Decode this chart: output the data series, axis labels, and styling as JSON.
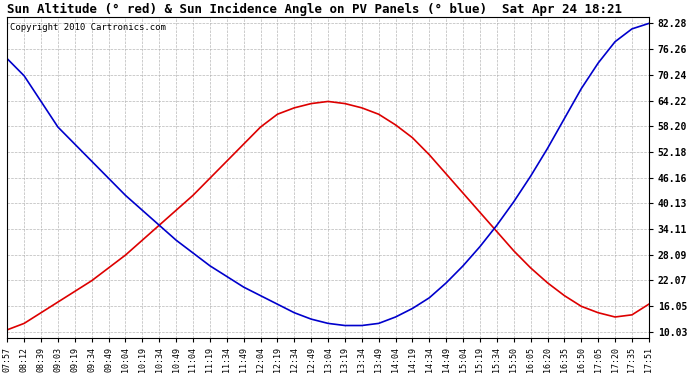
{
  "title": "Sun Altitude (° red) & Sun Incidence Angle on PV Panels (° blue)  Sat Apr 24 18:21",
  "copyright": "Copyright 2010 Cartronics.com",
  "yticks": [
    10.03,
    16.05,
    22.07,
    28.09,
    34.11,
    40.13,
    46.16,
    52.18,
    58.2,
    64.22,
    70.24,
    76.26,
    82.28
  ],
  "ymin": 10.03,
  "ymax": 82.28,
  "background_color": "#ffffff",
  "grid_color": "#b0b0b0",
  "red_color": "#dd0000",
  "blue_color": "#0000cc",
  "xtick_labels": [
    "07:57",
    "08:12",
    "08:39",
    "09:03",
    "09:19",
    "09:34",
    "09:49",
    "10:04",
    "10:19",
    "10:34",
    "10:49",
    "11:04",
    "11:19",
    "11:34",
    "11:49",
    "12:04",
    "12:19",
    "12:34",
    "12:49",
    "13:04",
    "13:19",
    "13:34",
    "13:49",
    "14:04",
    "14:19",
    "14:34",
    "14:49",
    "15:04",
    "15:19",
    "15:34",
    "15:50",
    "16:05",
    "16:20",
    "16:35",
    "16:50",
    "17:05",
    "17:20",
    "17:35",
    "17:51"
  ],
  "red_data": [
    10.5,
    12.0,
    14.5,
    17.0,
    19.5,
    22.0,
    25.0,
    28.0,
    31.5,
    35.0,
    38.5,
    42.0,
    46.0,
    50.0,
    54.0,
    58.0,
    61.0,
    62.5,
    63.5,
    64.0,
    63.5,
    62.5,
    61.0,
    58.5,
    55.5,
    51.5,
    47.0,
    42.5,
    38.0,
    33.5,
    29.0,
    25.0,
    21.5,
    18.5,
    16.0,
    14.5,
    13.5,
    14.0,
    16.5
  ],
  "blue_data": [
    74.0,
    70.0,
    64.0,
    58.0,
    54.0,
    50.0,
    46.0,
    42.0,
    38.5,
    35.0,
    31.5,
    28.5,
    25.5,
    23.0,
    20.5,
    18.5,
    16.5,
    14.5,
    13.0,
    12.0,
    11.5,
    11.5,
    12.0,
    13.5,
    15.5,
    18.0,
    21.5,
    25.5,
    30.0,
    35.0,
    40.5,
    46.5,
    53.0,
    60.0,
    67.0,
    73.0,
    78.0,
    81.0,
    82.28
  ],
  "figwidth": 6.9,
  "figheight": 3.75,
  "dpi": 100
}
